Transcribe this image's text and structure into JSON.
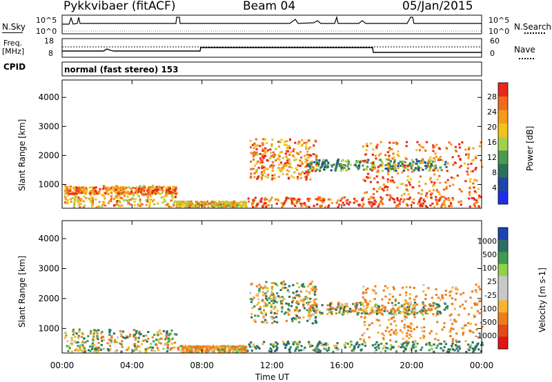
{
  "header": {
    "station": "Pykkvibaer (fitACF)",
    "beam": "Beam 04",
    "date": "05/Jan/2015"
  },
  "mode_label": "normal (fast stereo) 153",
  "strip_labels": {
    "nsky": "N.Sky",
    "nsearch": "N.Search",
    "freq_line1": "Freq.",
    "freq_line2": "[MHz]",
    "nave": "Nave",
    "cpid": "CPID",
    "nsky_top": "10^5",
    "nsky_bottom": "10^0",
    "nsearch_top": "10^5",
    "nsearch_bottom": "10^0",
    "freq_top": "18",
    "freq_bottom": "8",
    "nave_top": "60",
    "nave_bottom": "0"
  },
  "colors": {
    "power_scale": [
      "#1f2ee6",
      "#1e45a8",
      "#2b6f5a",
      "#4a9a52",
      "#a4d14a",
      "#f0c419",
      "#f59a1b",
      "#f06a1a",
      "#e8281a"
    ],
    "velocity_scale": [
      "#1e43b0",
      "#2b6f64",
      "#3e9a4e",
      "#8fd24a",
      "#c8c8c8",
      "#c8c8c8",
      "#f7b431",
      "#ef7d1e",
      "#e34a1a",
      "#e41414"
    ]
  },
  "chart_data": [
    {
      "type": "heatmap",
      "name": "power",
      "ylabel": "Slant Range [km]",
      "xlabel": "Time UT",
      "x_ticks": [
        "00:00",
        "04:00",
        "08:00",
        "12:00",
        "16:00",
        "20:00",
        "00:00"
      ],
      "y_ticks": [
        "1000",
        "2000",
        "3000",
        "4000"
      ],
      "ylim": [
        180,
        4600
      ],
      "xlim_hours": [
        0,
        24
      ],
      "colorbar_label": "Power [dB]",
      "colorbar_ticks": [
        "4",
        "8",
        "12",
        "16",
        "20",
        "24",
        "28"
      ],
      "regions": [
        {
          "t0": 0.1,
          "t1": 6.5,
          "r0": 250,
          "r1": 1000,
          "dB": 22
        },
        {
          "t0": 0.1,
          "t1": 6.5,
          "r0": 700,
          "r1": 950,
          "dB": 26
        },
        {
          "t0": 6.5,
          "t1": 10.5,
          "r0": 250,
          "r1": 450,
          "dB": 20
        },
        {
          "t0": 10.5,
          "t1": 24,
          "r0": 250,
          "r1": 600,
          "dB": 28
        },
        {
          "t0": 10.7,
          "t1": 14.5,
          "r0": 1200,
          "r1": 2600,
          "dB": 24
        },
        {
          "t0": 14.0,
          "t1": 22.0,
          "r0": 1500,
          "r1": 1900,
          "dB": 12
        },
        {
          "t0": 17.0,
          "t1": 24,
          "r0": 600,
          "r1": 2500,
          "dB": 26
        }
      ]
    },
    {
      "type": "heatmap",
      "name": "velocity",
      "ylabel": "Slant Range [km]",
      "xlabel": "Time UT",
      "x_ticks": [
        "00:00",
        "04:00",
        "08:00",
        "12:00",
        "16:00",
        "20:00",
        "00:00"
      ],
      "y_ticks": [
        "1000",
        "2000",
        "3000",
        "4000"
      ],
      "ylim": [
        180,
        4600
      ],
      "xlim_hours": [
        0,
        24
      ],
      "colorbar_label": "Velocity [m s-1]",
      "colorbar_ticks": [
        "1000",
        "500",
        "100",
        "25",
        "-25",
        "-100",
        "-500",
        "-1000"
      ],
      "regions": [
        {
          "t0": 0.1,
          "t1": 6.5,
          "r0": 250,
          "r1": 1000,
          "v": 0
        },
        {
          "t0": 6.5,
          "t1": 10.5,
          "r0": 250,
          "r1": 450,
          "v": -150
        },
        {
          "t0": 10.5,
          "t1": 24,
          "r0": 250,
          "r1": 600,
          "v": 150
        },
        {
          "t0": 10.7,
          "t1": 14.5,
          "r0": 1200,
          "r1": 2600,
          "v": 0
        },
        {
          "t0": 14.0,
          "t1": 22.0,
          "r0": 1500,
          "r1": 1900,
          "v": 0
        },
        {
          "t0": 17.0,
          "t1": 24,
          "r0": 600,
          "r1": 2500,
          "v": -200
        }
      ]
    }
  ]
}
